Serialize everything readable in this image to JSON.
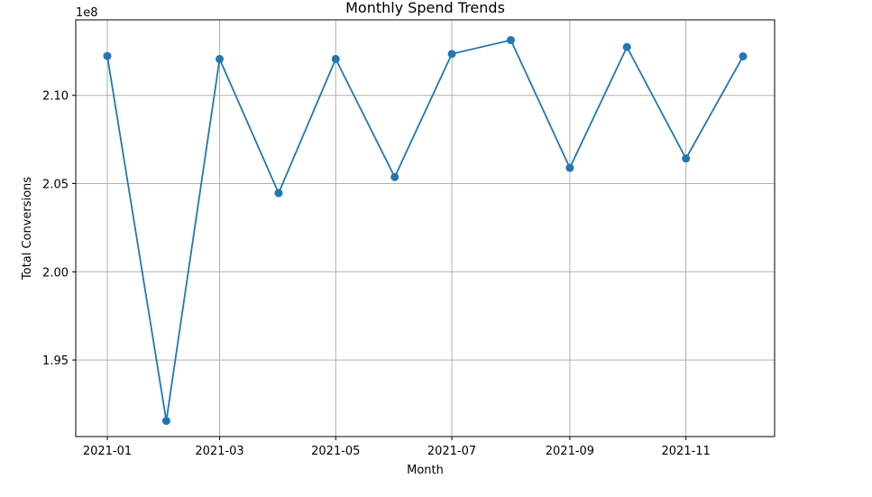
{
  "chart_data": {
    "type": "line",
    "title": "Monthly Spend Trends",
    "xlabel": "Month",
    "ylabel": "Total Conversions",
    "y_offset_label": "1e8",
    "y_scale_factor": 100000000,
    "x": [
      "2021-01",
      "2021-02",
      "2021-03",
      "2021-04",
      "2021-05",
      "2021-06",
      "2021-07",
      "2021-08",
      "2021-09",
      "2021-10",
      "2021-11",
      "2021-12"
    ],
    "x_ticks": [
      "2021-01",
      "2021-03",
      "2021-05",
      "2021-07",
      "2021-09",
      "2021-11"
    ],
    "y_ticks": [
      1.95,
      2.0,
      2.05,
      2.1
    ],
    "y_tick_labels": [
      "1.95",
      "2.00",
      "2.05",
      "2.10"
    ],
    "ylim": [
      1.9066,
      2.1428
    ],
    "grid": true,
    "series": [
      {
        "color": "#1f77b4",
        "marker": "circle",
        "values": [
          2.1223,
          1.9155,
          2.1206,
          2.0446,
          2.1206,
          2.0537,
          2.1235,
          2.1313,
          2.0589,
          2.1274,
          2.0642,
          2.1221
        ]
      }
    ]
  }
}
